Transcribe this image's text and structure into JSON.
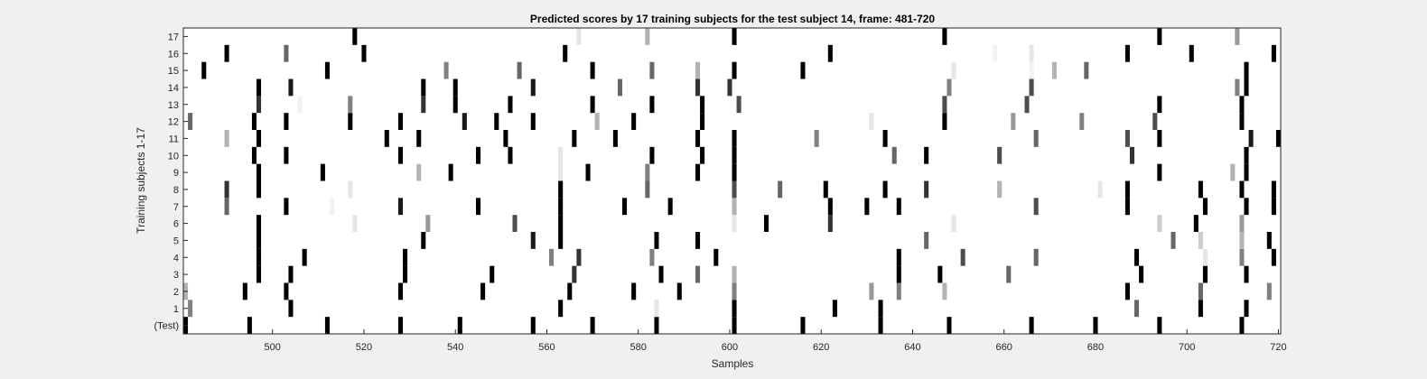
{
  "chart_data": {
    "type": "heatmap",
    "title": "Predicted scores by 17 training subjects for the test subject 14, frame: 481-720",
    "xlabel": "Samples",
    "ylabel": "Training subjects 1-17",
    "xlim": [
      481,
      720
    ],
    "xticks": [
      500,
      520,
      540,
      560,
      580,
      600,
      620,
      640,
      660,
      680,
      700,
      720
    ],
    "rows": [
      "(Test)",
      "1",
      "2",
      "3",
      "4",
      "5",
      "6",
      "7",
      "8",
      "9",
      "10",
      "11",
      "12",
      "13",
      "14",
      "15",
      "16",
      "17"
    ],
    "colormap": "white = 0 (no event), black = 1 (predicted event)",
    "series": [
      {
        "name": "(Test)",
        "events": [
          [
            481,
            1
          ],
          [
            495,
            1
          ],
          [
            512,
            1
          ],
          [
            528,
            1
          ],
          [
            541,
            1
          ],
          [
            557,
            1
          ],
          [
            570,
            1
          ],
          [
            584,
            1
          ],
          [
            601,
            1
          ],
          [
            616,
            1
          ],
          [
            633,
            1
          ],
          [
            648,
            1
          ],
          [
            666,
            1
          ],
          [
            680,
            1
          ],
          [
            694,
            1
          ],
          [
            712,
            1
          ]
        ]
      },
      {
        "name": "1",
        "events": [
          [
            482,
            0.5
          ],
          [
            504,
            1
          ],
          [
            563,
            1
          ],
          [
            584,
            0.1
          ],
          [
            601,
            1
          ],
          [
            623,
            1
          ],
          [
            633,
            1
          ],
          [
            689,
            0.6
          ],
          [
            703,
            1
          ],
          [
            713,
            1
          ]
        ]
      },
      {
        "name": "2",
        "events": [
          [
            481,
            0.3
          ],
          [
            494,
            1
          ],
          [
            503,
            1
          ],
          [
            528,
            1
          ],
          [
            546,
            1
          ],
          [
            565,
            1
          ],
          [
            579,
            1
          ],
          [
            589,
            1
          ],
          [
            601,
            0.5
          ],
          [
            631,
            0.4
          ],
          [
            637,
            0.5
          ],
          [
            647,
            0.3
          ],
          [
            687,
            1
          ],
          [
            703,
            0.6
          ],
          [
            718,
            0.5
          ]
        ]
      },
      {
        "name": "3",
        "events": [
          [
            497,
            1
          ],
          [
            504,
            1
          ],
          [
            529,
            1
          ],
          [
            548,
            1
          ],
          [
            566,
            0.8
          ],
          [
            585,
            1
          ],
          [
            593,
            0.6
          ],
          [
            601,
            0.3
          ],
          [
            637,
            1
          ],
          [
            646,
            1
          ],
          [
            661,
            0.6
          ],
          [
            690,
            1
          ],
          [
            704,
            1
          ],
          [
            713,
            1
          ]
        ]
      },
      {
        "name": "4",
        "events": [
          [
            497,
            1
          ],
          [
            507,
            1
          ],
          [
            529,
            1
          ],
          [
            561,
            0.5
          ],
          [
            567,
            0.8
          ],
          [
            583,
            0.5
          ],
          [
            597,
            1
          ],
          [
            637,
            1
          ],
          [
            651,
            0.7
          ],
          [
            667,
            0.6
          ],
          [
            689,
            1
          ],
          [
            704,
            0.1
          ],
          [
            712,
            0.5
          ],
          [
            719,
            1
          ]
        ]
      },
      {
        "name": "5",
        "events": [
          [
            497,
            1
          ],
          [
            533,
            1
          ],
          [
            557,
            0.9
          ],
          [
            563,
            1
          ],
          [
            584,
            1
          ],
          [
            593,
            1
          ],
          [
            643,
            0.6
          ],
          [
            697,
            0.6
          ],
          [
            703,
            0.2
          ],
          [
            712,
            0.3
          ],
          [
            718,
            1
          ]
        ]
      },
      {
        "name": "6",
        "events": [
          [
            497,
            1
          ],
          [
            518,
            0.1
          ],
          [
            534,
            0.4
          ],
          [
            553,
            0.7
          ],
          [
            563,
            1
          ],
          [
            601,
            0.1
          ],
          [
            608,
            1
          ],
          [
            622,
            0.8
          ],
          [
            649,
            0.1
          ],
          [
            694,
            0.2
          ],
          [
            702,
            1
          ],
          [
            712,
            0.4
          ]
        ]
      },
      {
        "name": "7",
        "events": [
          [
            490,
            0.6
          ],
          [
            503,
            1
          ],
          [
            513,
            0.05
          ],
          [
            528,
            0.9
          ],
          [
            545,
            1
          ],
          [
            563,
            1
          ],
          [
            577,
            1
          ],
          [
            587,
            1
          ],
          [
            601,
            0.3
          ],
          [
            622,
            1
          ],
          [
            630,
            1
          ],
          [
            637,
            1
          ],
          [
            667,
            0.7
          ],
          [
            687,
            1
          ],
          [
            704,
            1
          ],
          [
            713,
            1
          ],
          [
            719,
            1
          ]
        ]
      },
      {
        "name": "8",
        "events": [
          [
            490,
            0.8
          ],
          [
            497,
            1
          ],
          [
            517,
            0.1
          ],
          [
            563,
            1
          ],
          [
            582,
            0.6
          ],
          [
            601,
            0.7
          ],
          [
            611,
            0.6
          ],
          [
            621,
            1
          ],
          [
            634,
            1
          ],
          [
            643,
            0.8
          ],
          [
            659,
            0.3
          ],
          [
            681,
            0.1
          ],
          [
            687,
            1
          ],
          [
            703,
            1
          ],
          [
            712,
            1
          ],
          [
            719,
            1
          ]
        ]
      },
      {
        "name": "9",
        "events": [
          [
            497,
            1
          ],
          [
            511,
            1
          ],
          [
            532,
            0.3
          ],
          [
            539,
            1
          ],
          [
            563,
            0.1
          ],
          [
            569,
            1
          ],
          [
            582,
            0.5
          ],
          [
            593,
            1
          ],
          [
            601,
            1
          ],
          [
            694,
            1
          ],
          [
            710,
            0.3
          ],
          [
            713,
            1
          ]
        ]
      },
      {
        "name": "10",
        "events": [
          [
            496,
            1
          ],
          [
            503,
            1
          ],
          [
            528,
            1
          ],
          [
            545,
            1
          ],
          [
            552,
            1
          ],
          [
            563,
            0.1
          ],
          [
            583,
            1
          ],
          [
            594,
            1
          ],
          [
            601,
            1
          ],
          [
            636,
            0.6
          ],
          [
            643,
            1
          ],
          [
            659,
            0.7
          ],
          [
            688,
            0.8
          ],
          [
            713,
            1
          ]
        ]
      },
      {
        "name": "11",
        "events": [
          [
            490,
            0.3
          ],
          [
            497,
            1
          ],
          [
            525,
            1
          ],
          [
            532,
            1
          ],
          [
            551,
            1
          ],
          [
            566,
            1
          ],
          [
            575,
            1
          ],
          [
            593,
            1
          ],
          [
            601,
            1
          ],
          [
            619,
            0.5
          ],
          [
            634,
            1
          ],
          [
            667,
            0.6
          ],
          [
            687,
            0.7
          ],
          [
            694,
            1
          ],
          [
            714,
            0.9
          ],
          [
            720,
            1
          ]
        ]
      },
      {
        "name": "12",
        "events": [
          [
            482,
            0.6
          ],
          [
            496,
            1
          ],
          [
            503,
            1
          ],
          [
            517,
            1
          ],
          [
            528,
            1
          ],
          [
            542,
            0.9
          ],
          [
            549,
            1
          ],
          [
            557,
            1
          ],
          [
            571,
            0.3
          ],
          [
            579,
            1
          ],
          [
            594,
            1
          ],
          [
            631,
            0.1
          ],
          [
            647,
            1
          ],
          [
            662,
            0.4
          ],
          [
            677,
            0.5
          ],
          [
            693,
            0.7
          ],
          [
            712,
            1
          ]
        ]
      },
      {
        "name": "13",
        "events": [
          [
            497,
            0.8
          ],
          [
            506,
            0.05
          ],
          [
            517,
            0.5
          ],
          [
            533,
            0.8
          ],
          [
            540,
            1
          ],
          [
            552,
            1
          ],
          [
            570,
            1
          ],
          [
            583,
            1
          ],
          [
            594,
            1
          ],
          [
            602,
            0.7
          ],
          [
            647,
            0.7
          ],
          [
            665,
            0.7
          ],
          [
            694,
            1
          ],
          [
            712,
            1
          ]
        ]
      },
      {
        "name": "14",
        "events": [
          [
            497,
            1
          ],
          [
            504,
            0.9
          ],
          [
            533,
            1
          ],
          [
            540,
            1
          ],
          [
            557,
            0.9
          ],
          [
            576,
            0.6
          ],
          [
            593,
            0.8
          ],
          [
            600,
            0.8
          ],
          [
            648,
            0.5
          ],
          [
            666,
            0.7
          ],
          [
            711,
            0.5
          ],
          [
            713,
            1
          ]
        ]
      },
      {
        "name": "15",
        "events": [
          [
            485,
            1
          ],
          [
            512,
            1
          ],
          [
            538,
            0.5
          ],
          [
            554,
            0.6
          ],
          [
            570,
            1
          ],
          [
            583,
            0.6
          ],
          [
            593,
            0.3
          ],
          [
            601,
            1
          ],
          [
            616,
            1
          ],
          [
            649,
            0.1
          ],
          [
            666,
            0.05
          ],
          [
            671,
            0.3
          ],
          [
            678,
            0.6
          ],
          [
            713,
            1
          ]
        ]
      },
      {
        "name": "16",
        "events": [
          [
            490,
            1
          ],
          [
            503,
            0.6
          ],
          [
            520,
            1
          ],
          [
            564,
            1
          ],
          [
            622,
            1
          ],
          [
            658,
            0.05
          ],
          [
            666,
            0.1
          ],
          [
            687,
            1
          ],
          [
            701,
            1
          ],
          [
            719,
            1
          ]
        ]
      },
      {
        "name": "17",
        "events": [
          [
            518,
            1
          ],
          [
            567,
            0.1
          ],
          [
            582,
            0.3
          ],
          [
            601,
            1
          ],
          [
            647,
            1
          ],
          [
            694,
            1
          ],
          [
            711,
            0.4
          ]
        ]
      }
    ]
  }
}
